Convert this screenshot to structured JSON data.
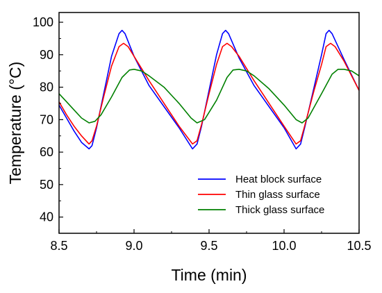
{
  "chart_data": {
    "type": "line",
    "title": "",
    "xlabel": "Time (min)",
    "ylabel": "Temperature (°C)",
    "xlim": [
      8.5,
      10.5
    ],
    "ylim": [
      35,
      103
    ],
    "xticks": [
      8.5,
      9.0,
      9.5,
      10.0,
      10.5
    ],
    "xtick_labels": [
      "8.5",
      "9.0",
      "9.5",
      "10.0",
      "10.5"
    ],
    "yticks": [
      40,
      50,
      60,
      70,
      80,
      90,
      100
    ],
    "ytick_labels": [
      "40",
      "50",
      "60",
      "70",
      "80",
      "90",
      "100"
    ],
    "grid": false,
    "legend_position": "lower-right",
    "series": [
      {
        "name": "Heat block surface",
        "color": "#0000ff",
        "x": [
          8.5,
          8.55,
          8.6,
          8.65,
          8.7,
          8.72,
          8.75,
          8.8,
          8.85,
          8.9,
          8.92,
          8.94,
          9.0,
          9.1,
          9.2,
          9.3,
          9.39,
          9.42,
          9.45,
          9.5,
          9.55,
          9.59,
          9.61,
          9.63,
          9.7,
          9.8,
          9.9,
          10.0,
          10.08,
          10.11,
          10.14,
          10.2,
          10.25,
          10.28,
          10.3,
          10.32,
          10.4,
          10.5
        ],
        "y": [
          74.5,
          70.5,
          66.5,
          63,
          61,
          62,
          67.5,
          78.5,
          89.5,
          96.5,
          97.5,
          96.5,
          89.5,
          80.5,
          74,
          67.5,
          61,
          62.5,
          68,
          79,
          90,
          96.5,
          97.5,
          96.5,
          89,
          80.5,
          74,
          67.5,
          61,
          62.5,
          68,
          80,
          90,
          96.5,
          97.5,
          96.5,
          88.5,
          79
        ]
      },
      {
        "name": "Thin glass surface",
        "color": "#ff0000",
        "x": [
          8.5,
          8.55,
          8.6,
          8.65,
          8.7,
          8.72,
          8.75,
          8.8,
          8.85,
          8.9,
          8.93,
          8.96,
          9.0,
          9.1,
          9.2,
          9.3,
          9.39,
          9.42,
          9.45,
          9.5,
          9.55,
          9.59,
          9.62,
          9.65,
          9.7,
          9.8,
          9.9,
          10.0,
          10.08,
          10.11,
          10.14,
          10.2,
          10.25,
          10.28,
          10.31,
          10.34,
          10.4,
          10.5
        ],
        "y": [
          75.5,
          71.5,
          68,
          65,
          62.5,
          63.5,
          68,
          77.5,
          86.5,
          92.5,
          93.5,
          92.5,
          89.5,
          82,
          75,
          68,
          62.5,
          63.5,
          68.5,
          78,
          87,
          92.5,
          93.5,
          92.5,
          89.5,
          82,
          75,
          68,
          62.5,
          63.5,
          68.5,
          79,
          87,
          92.5,
          93.5,
          92.5,
          88,
          79
        ]
      },
      {
        "name": "Thick glass surface",
        "color": "#008000",
        "x": [
          8.5,
          8.55,
          8.6,
          8.65,
          8.7,
          8.74,
          8.78,
          8.85,
          8.92,
          8.97,
          9.0,
          9.05,
          9.1,
          9.2,
          9.3,
          9.38,
          9.42,
          9.47,
          9.55,
          9.62,
          9.66,
          9.7,
          9.75,
          9.8,
          9.9,
          10.0,
          10.08,
          10.12,
          10.16,
          10.25,
          10.32,
          10.36,
          10.4,
          10.45,
          10.5
        ],
        "y": [
          78,
          75.5,
          73,
          70.5,
          69,
          69.5,
          71.5,
          77,
          83,
          85.3,
          85.5,
          85,
          83.5,
          80,
          75,
          70.5,
          69,
          70,
          76,
          83,
          85.3,
          85.5,
          85,
          83.5,
          79.5,
          74.5,
          70,
          69,
          70.5,
          78,
          84,
          85.5,
          85.5,
          85,
          83.5
        ]
      }
    ]
  }
}
